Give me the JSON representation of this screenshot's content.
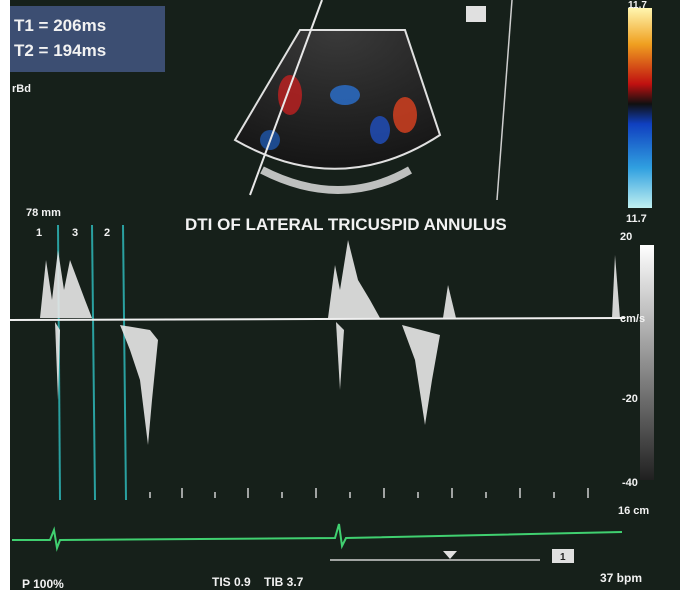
{
  "overlay": {
    "t1": "T1 = 206ms",
    "t2": "T2 = 194ms",
    "mode": "rBd"
  },
  "title": "DTI OF LATERAL TRICUSPID ANNULUS",
  "color_bar": {
    "top": "11.7",
    "bottom": "11.7"
  },
  "gate": {
    "depth": "78 mm",
    "markers": [
      "1",
      "3",
      "2"
    ]
  },
  "velocity_scale": {
    "top": "20",
    "unit": "cm/s",
    "mid": "-20",
    "low": "-40",
    "depth": "16 cm"
  },
  "footer": {
    "power": "P 100%",
    "tis": "TIS 0.9",
    "tib": "TIB 3.7",
    "heart_rate": "37 bpm",
    "screen_index": "1"
  }
}
